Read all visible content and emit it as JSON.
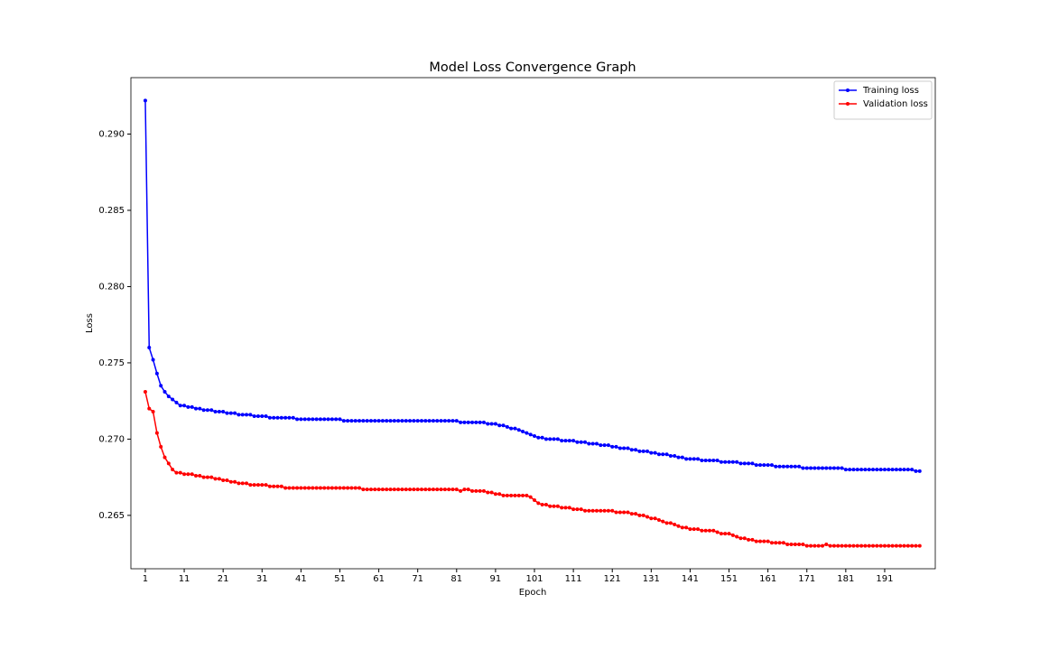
{
  "chart_data": {
    "type": "line",
    "title": "Model Loss Convergence Graph",
    "x_label": "Epoch",
    "y_label": "Loss",
    "x": [
      1,
      2,
      3,
      4,
      5,
      6,
      7,
      8,
      9,
      10,
      11,
      12,
      13,
      14,
      15,
      16,
      17,
      18,
      19,
      20,
      21,
      22,
      23,
      24,
      25,
      26,
      27,
      28,
      29,
      30,
      31,
      32,
      33,
      34,
      35,
      36,
      37,
      38,
      39,
      40,
      41,
      42,
      43,
      44,
      45,
      46,
      47,
      48,
      49,
      50,
      51,
      52,
      53,
      54,
      55,
      56,
      57,
      58,
      59,
      60,
      61,
      62,
      63,
      64,
      65,
      66,
      67,
      68,
      69,
      70,
      71,
      72,
      73,
      74,
      75,
      76,
      77,
      78,
      79,
      80,
      81,
      82,
      83,
      84,
      85,
      86,
      87,
      88,
      89,
      90,
      91,
      92,
      93,
      94,
      95,
      96,
      97,
      98,
      99,
      100,
      101,
      102,
      103,
      104,
      105,
      106,
      107,
      108,
      109,
      110,
      111,
      112,
      113,
      114,
      115,
      116,
      117,
      118,
      119,
      120,
      121,
      122,
      123,
      124,
      125,
      126,
      127,
      128,
      129,
      130,
      131,
      132,
      133,
      134,
      135,
      136,
      137,
      138,
      139,
      140,
      141,
      142,
      143,
      144,
      145,
      146,
      147,
      148,
      149,
      150,
      151,
      152,
      153,
      154,
      155,
      156,
      157,
      158,
      159,
      160,
      161,
      162,
      163,
      164,
      165,
      166,
      167,
      168,
      169,
      170,
      171,
      172,
      173,
      174,
      175,
      176,
      177,
      178,
      179,
      180,
      181,
      182,
      183,
      184,
      185,
      186,
      187,
      188,
      189,
      190,
      191,
      192,
      193,
      194,
      195,
      196,
      197,
      198,
      199,
      200
    ],
    "series": [
      {
        "name": "Training loss",
        "color": "#0000ff",
        "values": [
          0.2922,
          0.276,
          0.2752,
          0.2743,
          0.2735,
          0.2731,
          0.2728,
          0.2726,
          0.2724,
          0.2722,
          0.2722,
          0.2721,
          0.2721,
          0.272,
          0.272,
          0.2719,
          0.2719,
          0.2719,
          0.2718,
          0.2718,
          0.2718,
          0.2717,
          0.2717,
          0.2717,
          0.2716,
          0.2716,
          0.2716,
          0.2716,
          0.2715,
          0.2715,
          0.2715,
          0.2715,
          0.2714,
          0.2714,
          0.2714,
          0.2714,
          0.2714,
          0.2714,
          0.2714,
          0.2713,
          0.2713,
          0.2713,
          0.2713,
          0.2713,
          0.2713,
          0.2713,
          0.2713,
          0.2713,
          0.2713,
          0.2713,
          0.2713,
          0.2712,
          0.2712,
          0.2712,
          0.2712,
          0.2712,
          0.2712,
          0.2712,
          0.2712,
          0.2712,
          0.2712,
          0.2712,
          0.2712,
          0.2712,
          0.2712,
          0.2712,
          0.2712,
          0.2712,
          0.2712,
          0.2712,
          0.2712,
          0.2712,
          0.2712,
          0.2712,
          0.2712,
          0.2712,
          0.2712,
          0.2712,
          0.2712,
          0.2712,
          0.2712,
          0.2711,
          0.2711,
          0.2711,
          0.2711,
          0.2711,
          0.2711,
          0.2711,
          0.271,
          0.271,
          0.271,
          0.2709,
          0.2709,
          0.2708,
          0.2707,
          0.2707,
          0.2706,
          0.2705,
          0.2704,
          0.2703,
          0.2702,
          0.2701,
          0.2701,
          0.27,
          0.27,
          0.27,
          0.27,
          0.2699,
          0.2699,
          0.2699,
          0.2699,
          0.2698,
          0.2698,
          0.2698,
          0.2697,
          0.2697,
          0.2697,
          0.2696,
          0.2696,
          0.2696,
          0.2695,
          0.2695,
          0.2694,
          0.2694,
          0.2694,
          0.2693,
          0.2693,
          0.2692,
          0.2692,
          0.2692,
          0.2691,
          0.2691,
          0.269,
          0.269,
          0.269,
          0.2689,
          0.2689,
          0.2688,
          0.2688,
          0.2687,
          0.2687,
          0.2687,
          0.2687,
          0.2686,
          0.2686,
          0.2686,
          0.2686,
          0.2686,
          0.2685,
          0.2685,
          0.2685,
          0.2685,
          0.2685,
          0.2684,
          0.2684,
          0.2684,
          0.2684,
          0.2683,
          0.2683,
          0.2683,
          0.2683,
          0.2683,
          0.2682,
          0.2682,
          0.2682,
          0.2682,
          0.2682,
          0.2682,
          0.2682,
          0.2681,
          0.2681,
          0.2681,
          0.2681,
          0.2681,
          0.2681,
          0.2681,
          0.2681,
          0.2681,
          0.2681,
          0.2681,
          0.268,
          0.268,
          0.268,
          0.268,
          0.268,
          0.268,
          0.268,
          0.268,
          0.268,
          0.268,
          0.268,
          0.268,
          0.268,
          0.268,
          0.268,
          0.268,
          0.268,
          0.268,
          0.2679,
          0.2679
        ]
      },
      {
        "name": "Validation loss",
        "color": "#ff0000",
        "values": [
          0.2731,
          0.272,
          0.2718,
          0.2704,
          0.2695,
          0.2688,
          0.2684,
          0.268,
          0.2678,
          0.2678,
          0.2677,
          0.2677,
          0.2677,
          0.2676,
          0.2676,
          0.2675,
          0.2675,
          0.2675,
          0.2674,
          0.2674,
          0.2673,
          0.2673,
          0.2672,
          0.2672,
          0.2671,
          0.2671,
          0.2671,
          0.267,
          0.267,
          0.267,
          0.267,
          0.267,
          0.2669,
          0.2669,
          0.2669,
          0.2669,
          0.2668,
          0.2668,
          0.2668,
          0.2668,
          0.2668,
          0.2668,
          0.2668,
          0.2668,
          0.2668,
          0.2668,
          0.2668,
          0.2668,
          0.2668,
          0.2668,
          0.2668,
          0.2668,
          0.2668,
          0.2668,
          0.2668,
          0.2668,
          0.2667,
          0.2667,
          0.2667,
          0.2667,
          0.2667,
          0.2667,
          0.2667,
          0.2667,
          0.2667,
          0.2667,
          0.2667,
          0.2667,
          0.2667,
          0.2667,
          0.2667,
          0.2667,
          0.2667,
          0.2667,
          0.2667,
          0.2667,
          0.2667,
          0.2667,
          0.2667,
          0.2667,
          0.2667,
          0.2666,
          0.2667,
          0.2667,
          0.2666,
          0.2666,
          0.2666,
          0.2666,
          0.2665,
          0.2665,
          0.2664,
          0.2664,
          0.2663,
          0.2663,
          0.2663,
          0.2663,
          0.2663,
          0.2663,
          0.2663,
          0.2662,
          0.266,
          0.2658,
          0.2657,
          0.2657,
          0.2656,
          0.2656,
          0.2656,
          0.2655,
          0.2655,
          0.2655,
          0.2654,
          0.2654,
          0.2654,
          0.2653,
          0.2653,
          0.2653,
          0.2653,
          0.2653,
          0.2653,
          0.2653,
          0.2653,
          0.2652,
          0.2652,
          0.2652,
          0.2652,
          0.2651,
          0.2651,
          0.265,
          0.265,
          0.2649,
          0.2648,
          0.2648,
          0.2647,
          0.2646,
          0.2645,
          0.2645,
          0.2644,
          0.2643,
          0.2642,
          0.2642,
          0.2641,
          0.2641,
          0.2641,
          0.264,
          0.264,
          0.264,
          0.264,
          0.2639,
          0.2638,
          0.2638,
          0.2638,
          0.2637,
          0.2636,
          0.2635,
          0.2635,
          0.2634,
          0.2634,
          0.2633,
          0.2633,
          0.2633,
          0.2633,
          0.2632,
          0.2632,
          0.2632,
          0.2632,
          0.2631,
          0.2631,
          0.2631,
          0.2631,
          0.2631,
          0.263,
          0.263,
          0.263,
          0.263,
          0.263,
          0.2631,
          0.263,
          0.263,
          0.263,
          0.263,
          0.263,
          0.263,
          0.263,
          0.263,
          0.263,
          0.263,
          0.263,
          0.263,
          0.263,
          0.263,
          0.263,
          0.263,
          0.263,
          0.263,
          0.263,
          0.263,
          0.263,
          0.263,
          0.263,
          0.263
        ]
      }
    ],
    "xlim": [
      -2.7,
      204
    ],
    "xticks": [
      1,
      11,
      21,
      31,
      41,
      51,
      61,
      71,
      81,
      91,
      101,
      111,
      121,
      131,
      141,
      151,
      161,
      171,
      181,
      191
    ],
    "ylim": [
      0.2615,
      0.2937
    ],
    "yticks": [
      0.265,
      {
        "value": 0.27,
        "label": "0.270"
      },
      0.275,
      {
        "value": 0.28,
        "label": "0.280"
      },
      0.285,
      {
        "value": 0.29,
        "label": "0.290"
      }
    ],
    "grid": false,
    "legend": "upper right"
  }
}
